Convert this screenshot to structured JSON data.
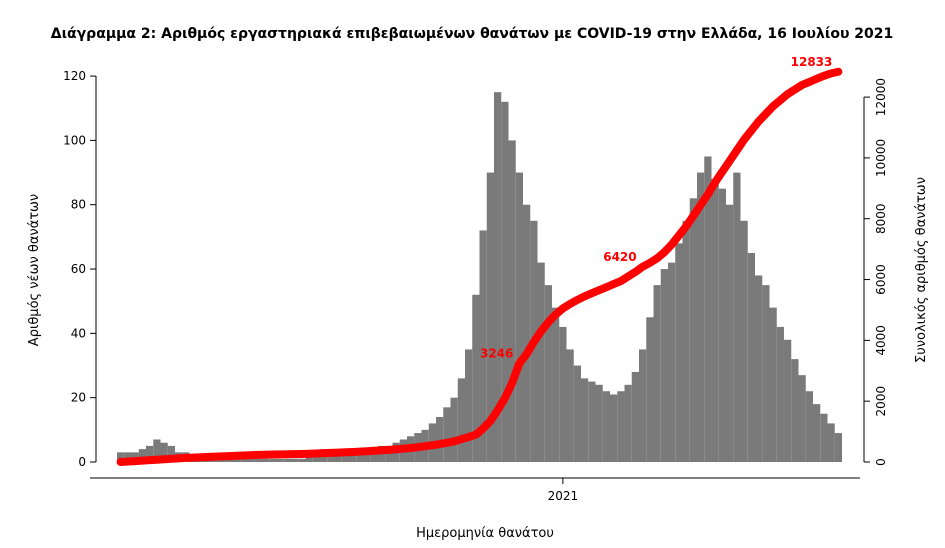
{
  "chart_data": {
    "type": "bar_line",
    "title": "Διάγραμμα 2: Αριθμός εργαστηριακά επιβεβαιωμένων θανάτων με COVID-19 στην Ελλάδα, 16 Ιουλίου 2021",
    "x_label": "Ημερομηνία θανάτου",
    "y_label": "Αριθμός νέων θανάτων",
    "y2_label": "Συνολικός αριθμός θανάτων",
    "categories": [
      null,
      null,
      null,
      null,
      null,
      null,
      null,
      null,
      null,
      null,
      null,
      null,
      null,
      null,
      null,
      null,
      null,
      null,
      null,
      null,
      null,
      null,
      null,
      null,
      null,
      null,
      null,
      null,
      null,
      null,
      null,
      null,
      null,
      null,
      null,
      null,
      null,
      null,
      null,
      null,
      null,
      null,
      null,
      null,
      null,
      null,
      null,
      null,
      null,
      null,
      null,
      null,
      null,
      null,
      null,
      null,
      null,
      null,
      null,
      null,
      null,
      "2021",
      null,
      null,
      null,
      null,
      null,
      null,
      null,
      null,
      null,
      null,
      null,
      null,
      null,
      null,
      null,
      null,
      null,
      null,
      null,
      null,
      null,
      null,
      null,
      null,
      null,
      null,
      null,
      null,
      null,
      null,
      null,
      null,
      null,
      null,
      null,
      null,
      null,
      null
    ],
    "series": [
      {
        "color": "#7a7a7a",
        "values": [
          3,
          3,
          3,
          4,
          5,
          7,
          6,
          5,
          3,
          3,
          2,
          2,
          2,
          2,
          2,
          2,
          2,
          2,
          2,
          1,
          1,
          1,
          1,
          1,
          1,
          1,
          2,
          2,
          2,
          2,
          2,
          3,
          3,
          3,
          4,
          4,
          5,
          5,
          6,
          7,
          8,
          9,
          10,
          12,
          14,
          17,
          20,
          26,
          35,
          52,
          72,
          90,
          115,
          112,
          100,
          90,
          80,
          75,
          62,
          55,
          48,
          42,
          35,
          30,
          26,
          25,
          24,
          22,
          21,
          22,
          24,
          28,
          35,
          45,
          55,
          60,
          62,
          68,
          75,
          82,
          90,
          95,
          88,
          85,
          80,
          90,
          75,
          65,
          58,
          55,
          48,
          42,
          38,
          32,
          27,
          22,
          18,
          15,
          12,
          9
        ]
      },
      {
        "color": "#ff0000",
        "axis": "y2",
        "values": [
          0,
          15,
          30,
          45,
          60,
          75,
          90,
          105,
          120,
          135,
          145,
          155,
          165,
          175,
          185,
          195,
          205,
          215,
          225,
          235,
          240,
          245,
          250,
          255,
          260,
          265,
          270,
          280,
          290,
          300,
          310,
          320,
          330,
          340,
          355,
          370,
          385,
          400,
          420,
          440,
          460,
          490,
          520,
          550,
          590,
          630,
          680,
          750,
          820,
          900,
          1100,
          1350,
          1700,
          2100,
          2600,
          3246,
          3550,
          3950,
          4300,
          4600,
          4850,
          5050,
          5200,
          5330,
          5450,
          5550,
          5650,
          5750,
          5850,
          5950,
          6100,
          6250,
          6420,
          6550,
          6700,
          6900,
          7150,
          7450,
          7750,
          8100,
          8450,
          8800,
          9200,
          9550,
          9900,
          10250,
          10600,
          10900,
          11200,
          11450,
          11700,
          11900,
          12100,
          12250,
          12400,
          12500,
          12600,
          12700,
          12780,
          12833
        ],
        "value_labels": [
          null,
          null,
          null,
          null,
          null,
          null,
          null,
          null,
          null,
          null,
          null,
          null,
          null,
          null,
          null,
          null,
          null,
          null,
          null,
          null,
          null,
          null,
          null,
          null,
          null,
          null,
          null,
          null,
          null,
          null,
          null,
          null,
          null,
          null,
          null,
          null,
          null,
          null,
          null,
          null,
          null,
          null,
          null,
          null,
          null,
          null,
          null,
          null,
          null,
          null,
          null,
          null,
          null,
          null,
          null,
          "3246",
          null,
          null,
          null,
          null,
          null,
          null,
          null,
          null,
          null,
          null,
          null,
          null,
          null,
          null,
          null,
          null,
          "6420",
          null,
          null,
          null,
          null,
          null,
          null,
          null,
          null,
          null,
          null,
          null,
          null,
          null,
          null,
          null,
          null,
          null,
          null,
          null,
          null,
          null,
          null,
          null,
          null,
          null,
          null,
          "12833"
        ]
      }
    ],
    "ylim": [
      0,
      125
    ],
    "yticks": [
      0,
      20,
      40,
      60,
      80,
      100,
      120
    ],
    "y2lim": [
      0,
      13220
    ],
    "y2ticks": [
      0,
      2000,
      4000,
      6000,
      8000,
      10000,
      12000
    ]
  }
}
